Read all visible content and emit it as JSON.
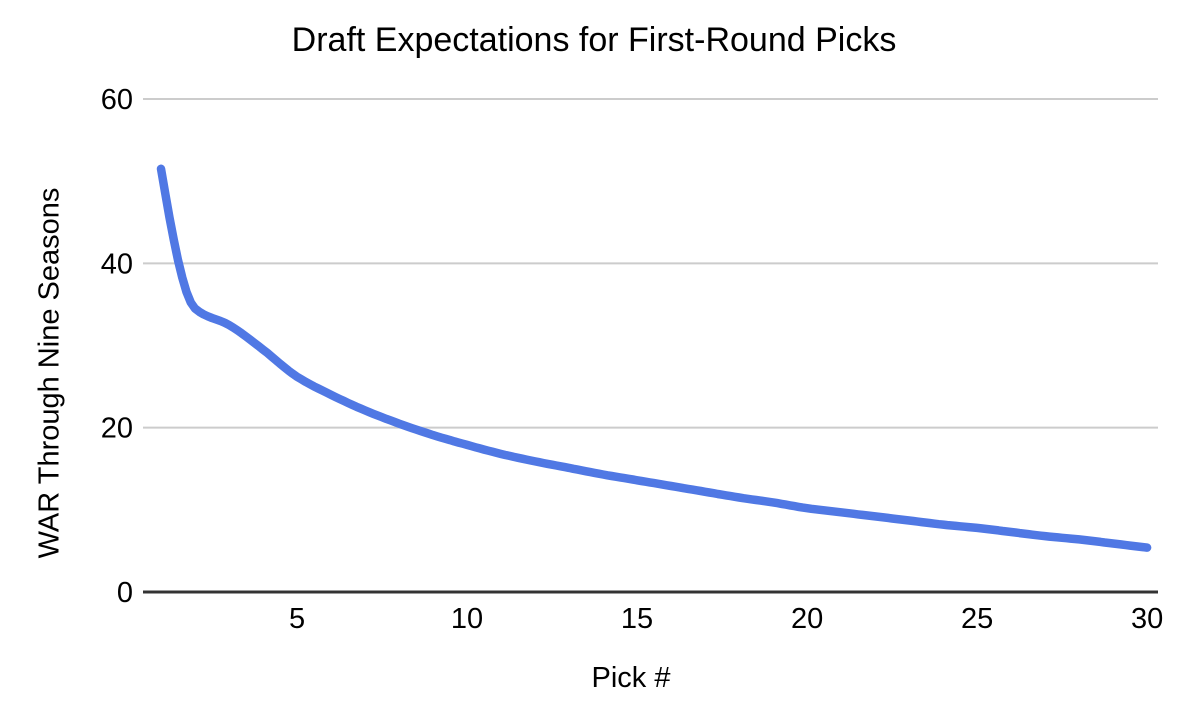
{
  "chart_data": {
    "type": "line",
    "title": "Draft Expectations for First-Round Picks",
    "xlabel": "Pick #",
    "ylabel": "WAR Through Nine Seasons",
    "x": [
      1,
      2,
      3,
      4,
      5,
      6,
      7,
      8,
      9,
      10,
      11,
      12,
      13,
      14,
      15,
      16,
      17,
      18,
      19,
      20,
      21,
      22,
      23,
      24,
      25,
      26,
      27,
      28,
      29,
      30
    ],
    "values": [
      51.5,
      34.5,
      32.5,
      29.5,
      26.2,
      24.0,
      22.1,
      20.5,
      19.1,
      17.9,
      16.8,
      15.9,
      15.1,
      14.3,
      13.6,
      12.9,
      12.2,
      11.5,
      10.9,
      10.2,
      9.7,
      9.2,
      8.7,
      8.2,
      7.8,
      7.3,
      6.8,
      6.4,
      5.9,
      5.4
    ],
    "xticks": [
      5,
      10,
      15,
      20,
      25,
      30
    ],
    "yticks": [
      0,
      20,
      40,
      60
    ],
    "xlim": [
      0.47,
      30.32
    ],
    "ylim": [
      0,
      60
    ],
    "grid": "horizontal",
    "legend": "none",
    "smooth": true,
    "line_color": "#5078e4",
    "gridline_color": "#cccccc",
    "axis_color": "#333333",
    "background": "#ffffff"
  }
}
